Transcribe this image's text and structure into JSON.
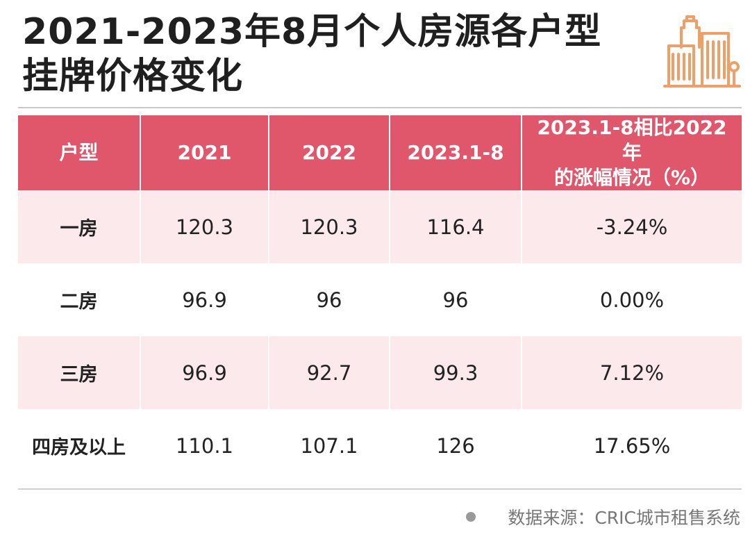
{
  "title": {
    "line1": "2021-2023年8月个人房源各户型",
    "line2": "挂牌价格变化"
  },
  "logo_icon": "city-buildings-icon",
  "colors": {
    "header_bg": "#e0566b",
    "shaded_row": "#fbe9ec",
    "logo": "#f0a066"
  },
  "table": {
    "headers": [
      "户型",
      "2021",
      "2022",
      "2023.1-8",
      "2023.1-8相比2022年的涨幅情况（%）"
    ],
    "header_last_line1": "2023.1-8相比2022年",
    "header_last_line2": "的涨幅情况（%）",
    "rows": [
      [
        "一房",
        "120.3",
        "120.3",
        "116.4",
        "-3.24%"
      ],
      [
        "二房",
        "96.9",
        "96",
        "96",
        "0.00%"
      ],
      [
        "三房",
        "96.9",
        "92.7",
        "99.3",
        "7.12%"
      ],
      [
        "四房及以上",
        "110.1",
        "107.1",
        "126",
        "17.65%"
      ]
    ]
  },
  "source": {
    "text": "数据来源：CRIC城市租售系统"
  }
}
